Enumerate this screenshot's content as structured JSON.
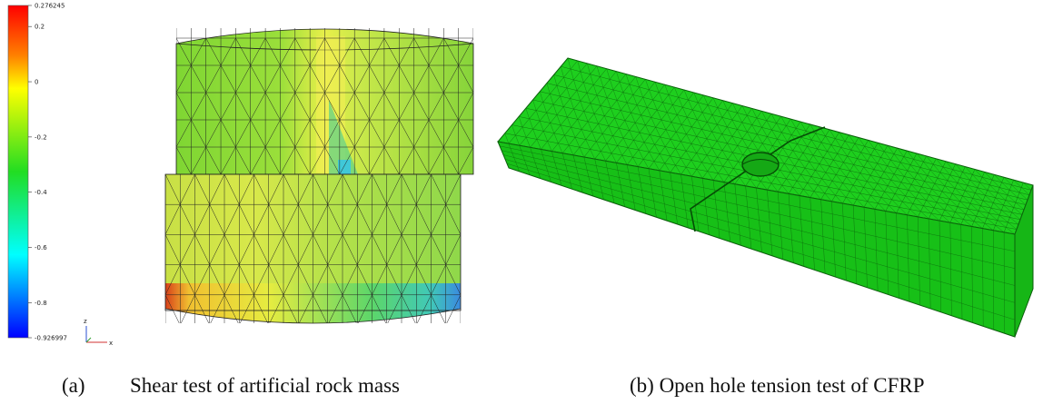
{
  "figure_a": {
    "colorbar": {
      "ticks": [
        "0.276245",
        "0.2",
        "0",
        "-0.2",
        "-0.4",
        "-0.6",
        "-0.8",
        "-0.926997"
      ],
      "tick_values": [
        0.276245,
        0.2,
        0,
        -0.2,
        -0.4,
        -0.6,
        -0.8,
        -0.926997
      ],
      "min": -0.926997,
      "max": 0.276245,
      "colormap": [
        "#0000ff",
        "#00ffff",
        "#00ff00",
        "#ffff00",
        "#ff0000"
      ]
    },
    "axis_triad": {
      "vertical": "z",
      "horizontal": "x"
    },
    "caption_label": "(a)",
    "caption_text": "Shear test of artificial rock mass"
  },
  "figure_b": {
    "mesh_color": "#1ecf1e",
    "caption": "(b) Open hole tension test of CFRP"
  }
}
